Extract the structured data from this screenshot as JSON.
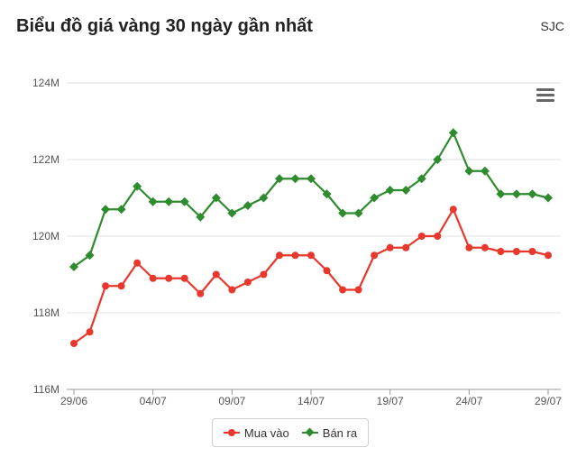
{
  "header": {
    "title": "Biểu đồ giá vàng 30 ngày gần nhất",
    "brand": "SJC"
  },
  "icons": {
    "menu": "hamburger-menu-icon"
  },
  "colors": {
    "buy": "#e8382d",
    "sell": "#2e8b2e",
    "grid": "#e0e0e0",
    "axis": "#555555"
  },
  "legend": {
    "buy_label": "Mua vào",
    "sell_label": "Bán ra"
  },
  "chart_data": {
    "type": "line",
    "title": "Biểu đồ giá vàng 30 ngày gần nhất",
    "xlabel": "",
    "ylabel": "",
    "x_ticks": [
      "29/06",
      "04/07",
      "09/07",
      "14/07",
      "19/07",
      "24/07",
      "29/07"
    ],
    "y_ticks": [
      "116M",
      "118M",
      "120M",
      "122M",
      "124M"
    ],
    "ylim": [
      116,
      124
    ],
    "y_unit": "M",
    "grid": true,
    "legend_position": "bottom",
    "series": [
      {
        "name": "Mua vào",
        "color": "#e8382d",
        "marker": "circle",
        "values": [
          117.2,
          117.5,
          118.7,
          118.7,
          119.3,
          118.9,
          118.9,
          118.9,
          118.5,
          119.0,
          118.6,
          118.8,
          119.0,
          119.5,
          119.5,
          119.5,
          119.1,
          118.6,
          118.6,
          119.5,
          119.7,
          119.7,
          120.0,
          120.0,
          120.7,
          119.7,
          119.7,
          119.6,
          119.6,
          119.6,
          119.5
        ]
      },
      {
        "name": "Bán ra",
        "color": "#2e8b2e",
        "marker": "diamond",
        "values": [
          119.2,
          119.5,
          120.7,
          120.7,
          121.3,
          120.9,
          120.9,
          120.9,
          120.5,
          121.0,
          120.6,
          120.8,
          121.0,
          121.5,
          121.5,
          121.5,
          121.1,
          120.6,
          120.6,
          121.0,
          121.2,
          121.2,
          121.5,
          122.0,
          122.7,
          121.7,
          121.7,
          121.1,
          121.1,
          121.1,
          121.0
        ]
      }
    ]
  }
}
